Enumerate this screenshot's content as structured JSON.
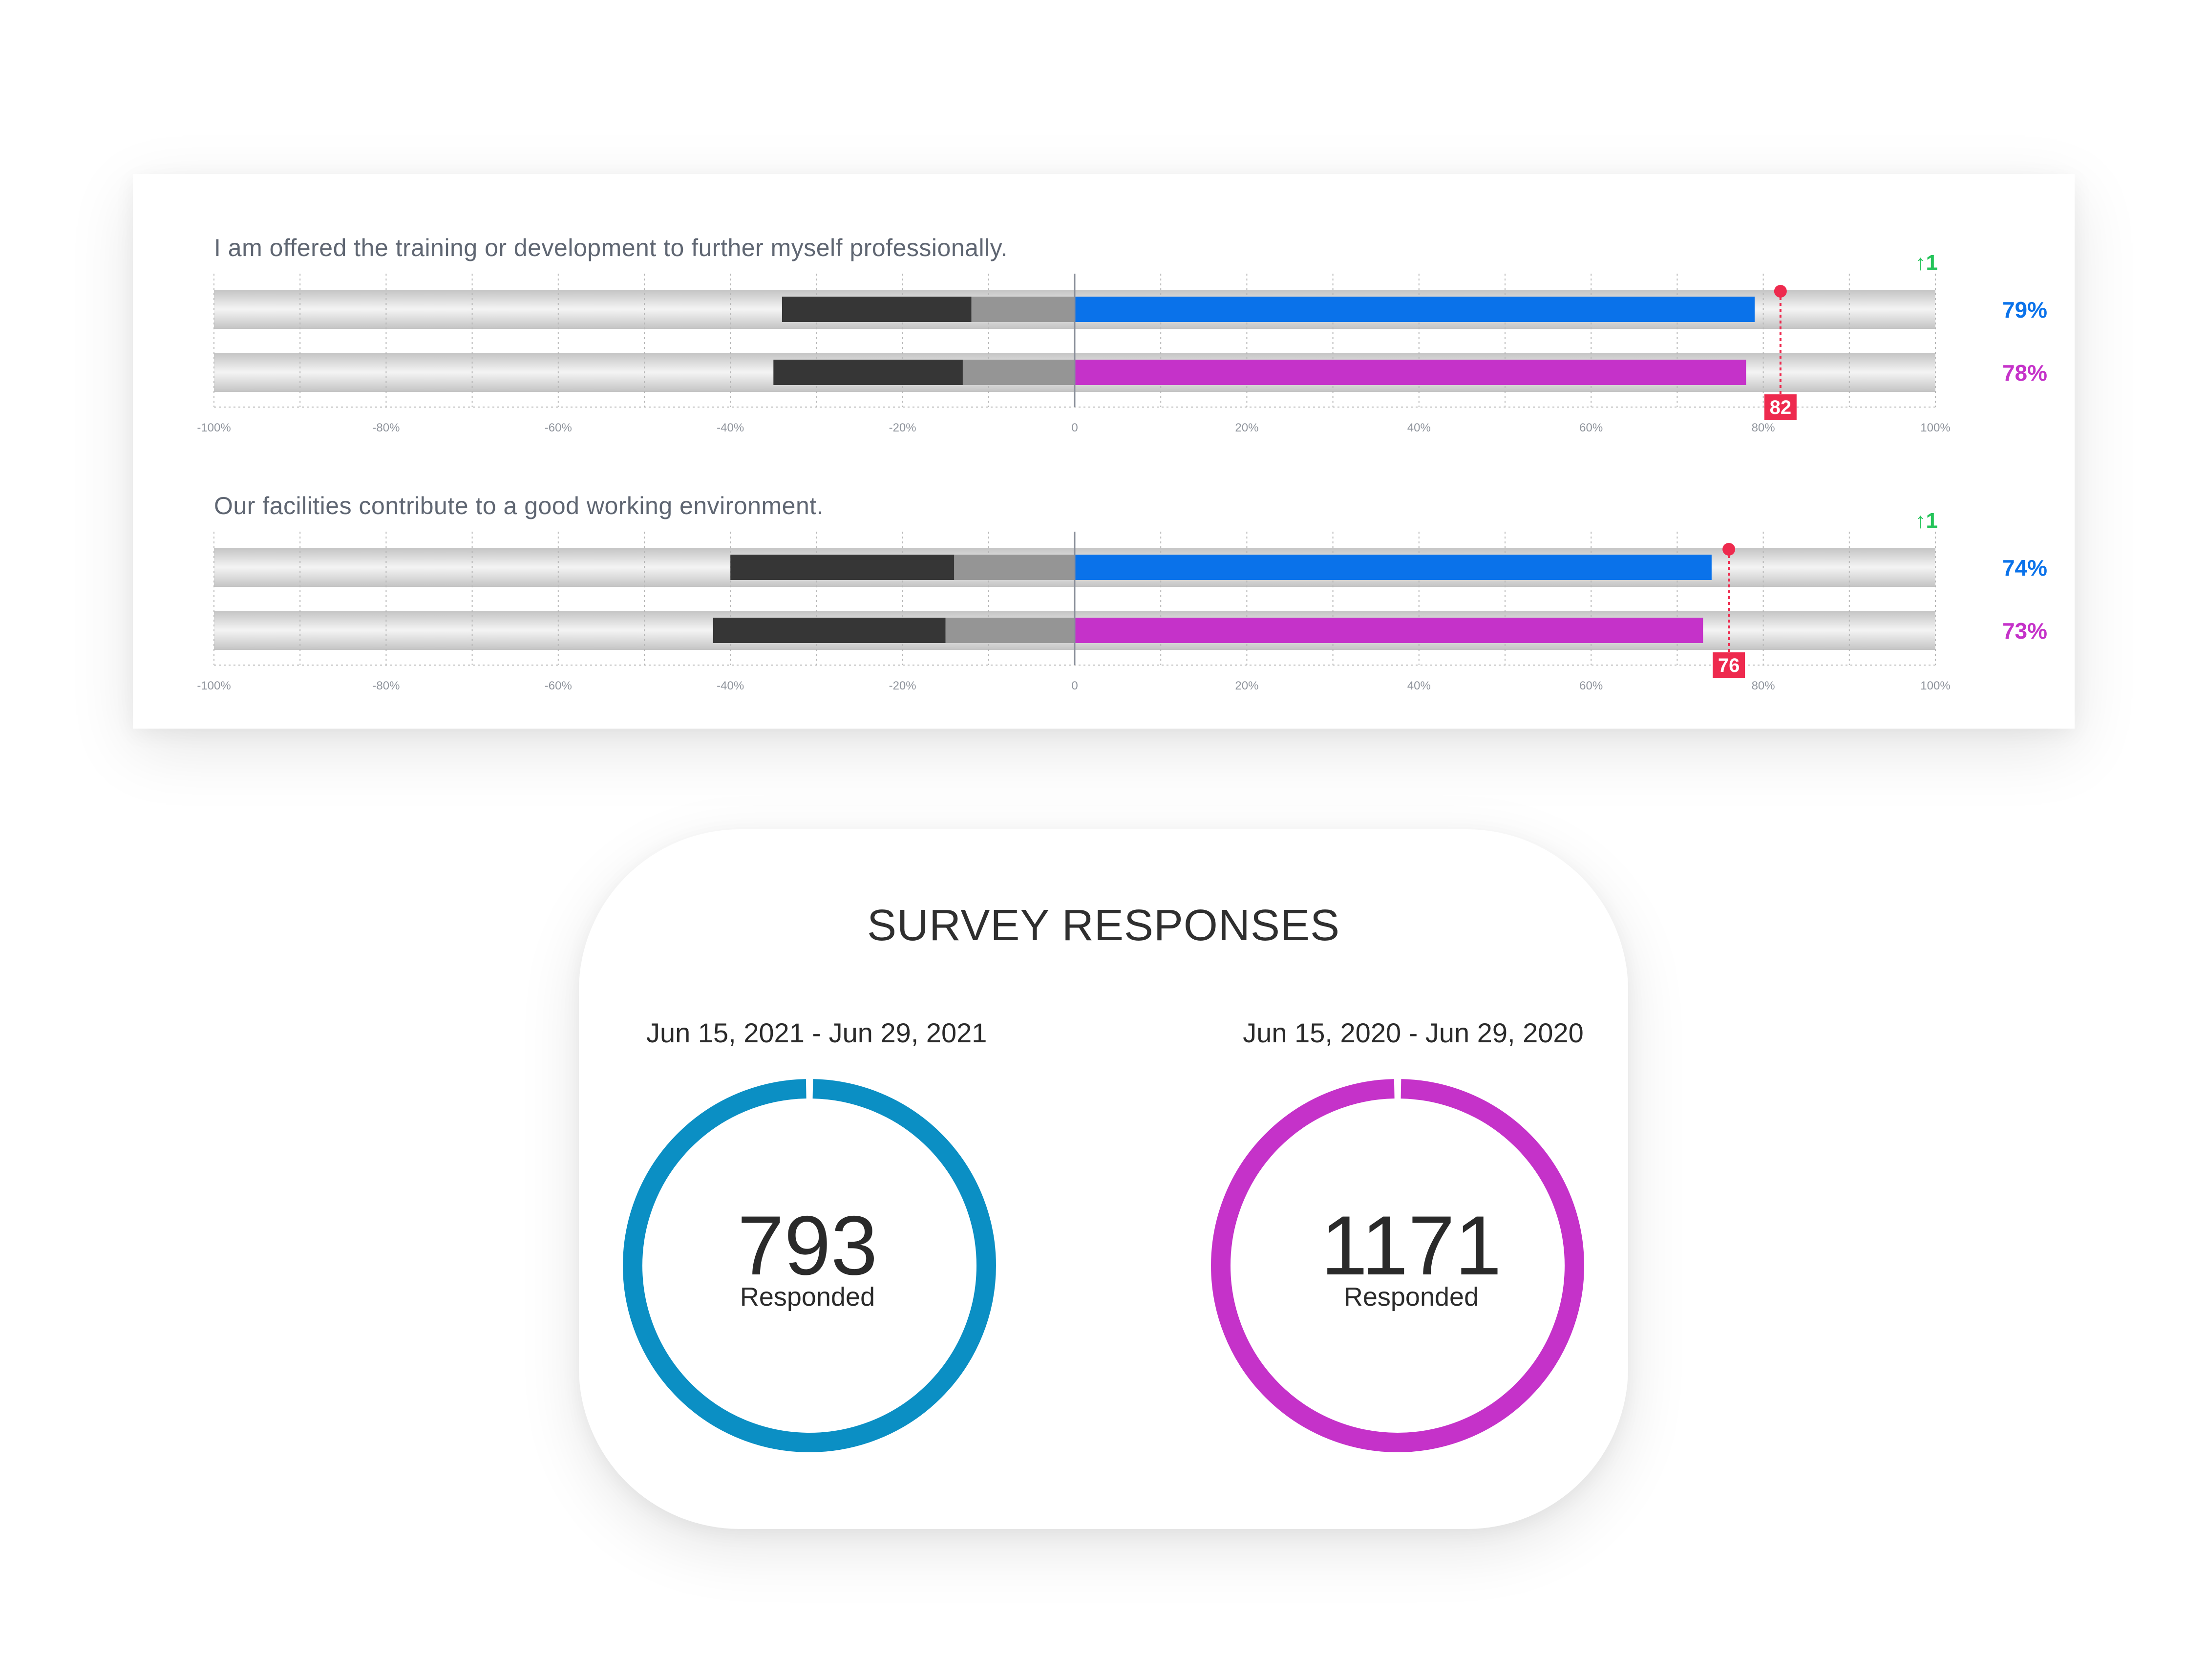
{
  "questions": [
    {
      "text": "I am offered the training or development to further myself professionally.",
      "change": "↑1",
      "benchmark": 82,
      "rows": [
        {
          "label": "79%",
          "color": "#0a72ea",
          "negative_dark": 22,
          "negative_light": 12,
          "positive": 79
        },
        {
          "label": "78%",
          "color": "#c532c9",
          "negative_dark": 22,
          "negative_light": 13,
          "positive": 78
        }
      ]
    },
    {
      "text": "Our facilities contribute to a good working environment.",
      "change": "↑1",
      "benchmark": 76,
      "rows": [
        {
          "label": "74%",
          "color": "#0a72ea",
          "negative_dark": 26,
          "negative_light": 14,
          "positive": 74
        },
        {
          "label": "73%",
          "color": "#c532c9",
          "negative_dark": 27,
          "negative_light": 15,
          "positive": 73
        }
      ]
    }
  ],
  "axis_ticks": [
    "-100%",
    "-80%",
    "-60%",
    "-40%",
    "-20%",
    "0",
    "20%",
    "40%",
    "60%",
    "80%",
    "100%"
  ],
  "colors": {
    "accent_blue": "#0a72ea",
    "accent_magenta": "#c532c9",
    "benchmark_red": "#ee2a4e",
    "positive_change_green": "#25c45a",
    "ring_blue": "#0b8fc4",
    "ring_magenta": "#c532c9"
  },
  "survey": {
    "title": "SURVEY RESPONSES",
    "periods": [
      {
        "range": "Jun 15, 2021 - Jun 29, 2021",
        "count": "793",
        "label": "Responded",
        "color": "#0b8fc4"
      },
      {
        "range": "Jun 15, 2020 - Jun 29, 2020",
        "count": "1171",
        "label": "Responded",
        "color": "#c532c9"
      }
    ]
  }
}
